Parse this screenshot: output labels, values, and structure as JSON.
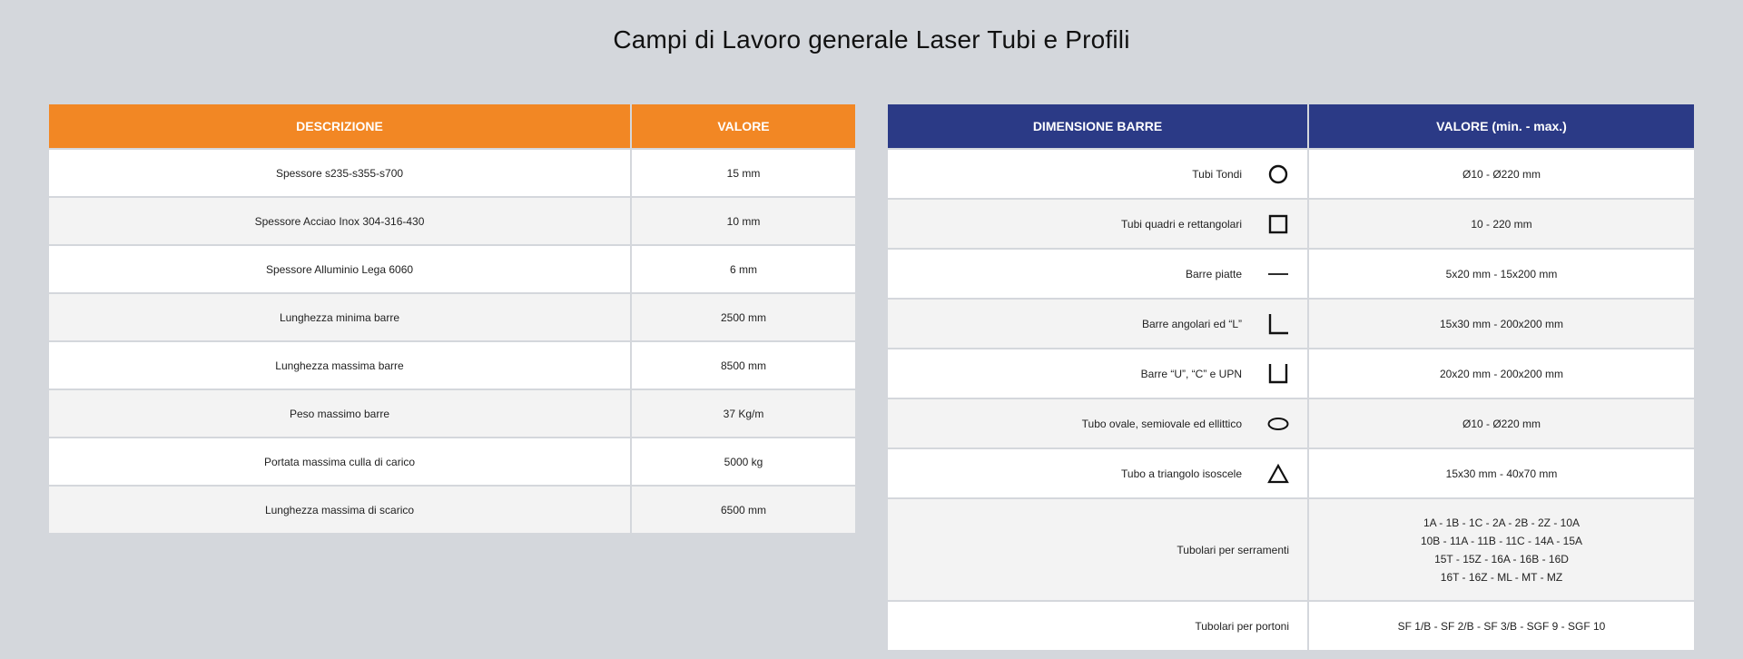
{
  "title": "Campi di Lavoro generale Laser Tubi e Profili",
  "left_table": {
    "headers": [
      "DESCRIZIONE",
      "VALORE"
    ],
    "header_color": "#f28724",
    "rows": [
      [
        "Spessore s235-s355-s700",
        "15 mm"
      ],
      [
        "Spessore Acciao Inox 304-316-430",
        "10 mm"
      ],
      [
        "Spessore Alluminio Lega 6060",
        "6 mm"
      ],
      [
        "Lunghezza minima barre",
        "2500 mm"
      ],
      [
        "Lunghezza massima barre",
        "8500 mm"
      ],
      [
        "Peso massimo barre",
        "37 Kg/m"
      ],
      [
        "Portata massima culla di carico",
        "5000 kg"
      ],
      [
        "Lunghezza massima di scarico",
        "6500 mm"
      ]
    ]
  },
  "right_table": {
    "headers": [
      "DIMENSIONE BARRE",
      "VALORE (min. - max.)"
    ],
    "header_color": "#2b3a86",
    "rows": [
      {
        "label": "Tubi Tondi",
        "icon": "circle-icon",
        "value": "Ø10 - Ø220 mm"
      },
      {
        "label": "Tubi quadri e rettangolari",
        "icon": "square-icon",
        "value": "10 - 220 mm"
      },
      {
        "label": "Barre piatte",
        "icon": "flat-bar-icon",
        "value": "5x20 mm - 15x200 mm"
      },
      {
        "label": "Barre angolari ed “L”",
        "icon": "angle-l-icon",
        "value": "15x30 mm - 200x200 mm"
      },
      {
        "label": "Barre “U”, “C” e UPN",
        "icon": "u-channel-icon",
        "value": "20x20 mm - 200x200 mm"
      },
      {
        "label": "Tubo ovale, semiovale ed ellittico",
        "icon": "oval-icon",
        "value": "Ø10 - Ø220 mm"
      },
      {
        "label": "Tubo a triangolo isoscele",
        "icon": "triangle-icon",
        "value": "15x30 mm - 40x70 mm"
      },
      {
        "label": "Tubolari per serramenti",
        "values": [
          "1A - 1B - 1C - 2A - 2B - 2Z - 10A",
          "10B - 11A - 11B - 11C - 14A - 15A",
          "15T - 15Z - 16A - 16B - 16D",
          "16T - 16Z - ML - MT - MZ"
        ]
      },
      {
        "label": "Tubolari per portoni",
        "value": "SF 1/B - SF 2/B - SF 3/B - SGF 9 - SGF 10"
      }
    ]
  }
}
